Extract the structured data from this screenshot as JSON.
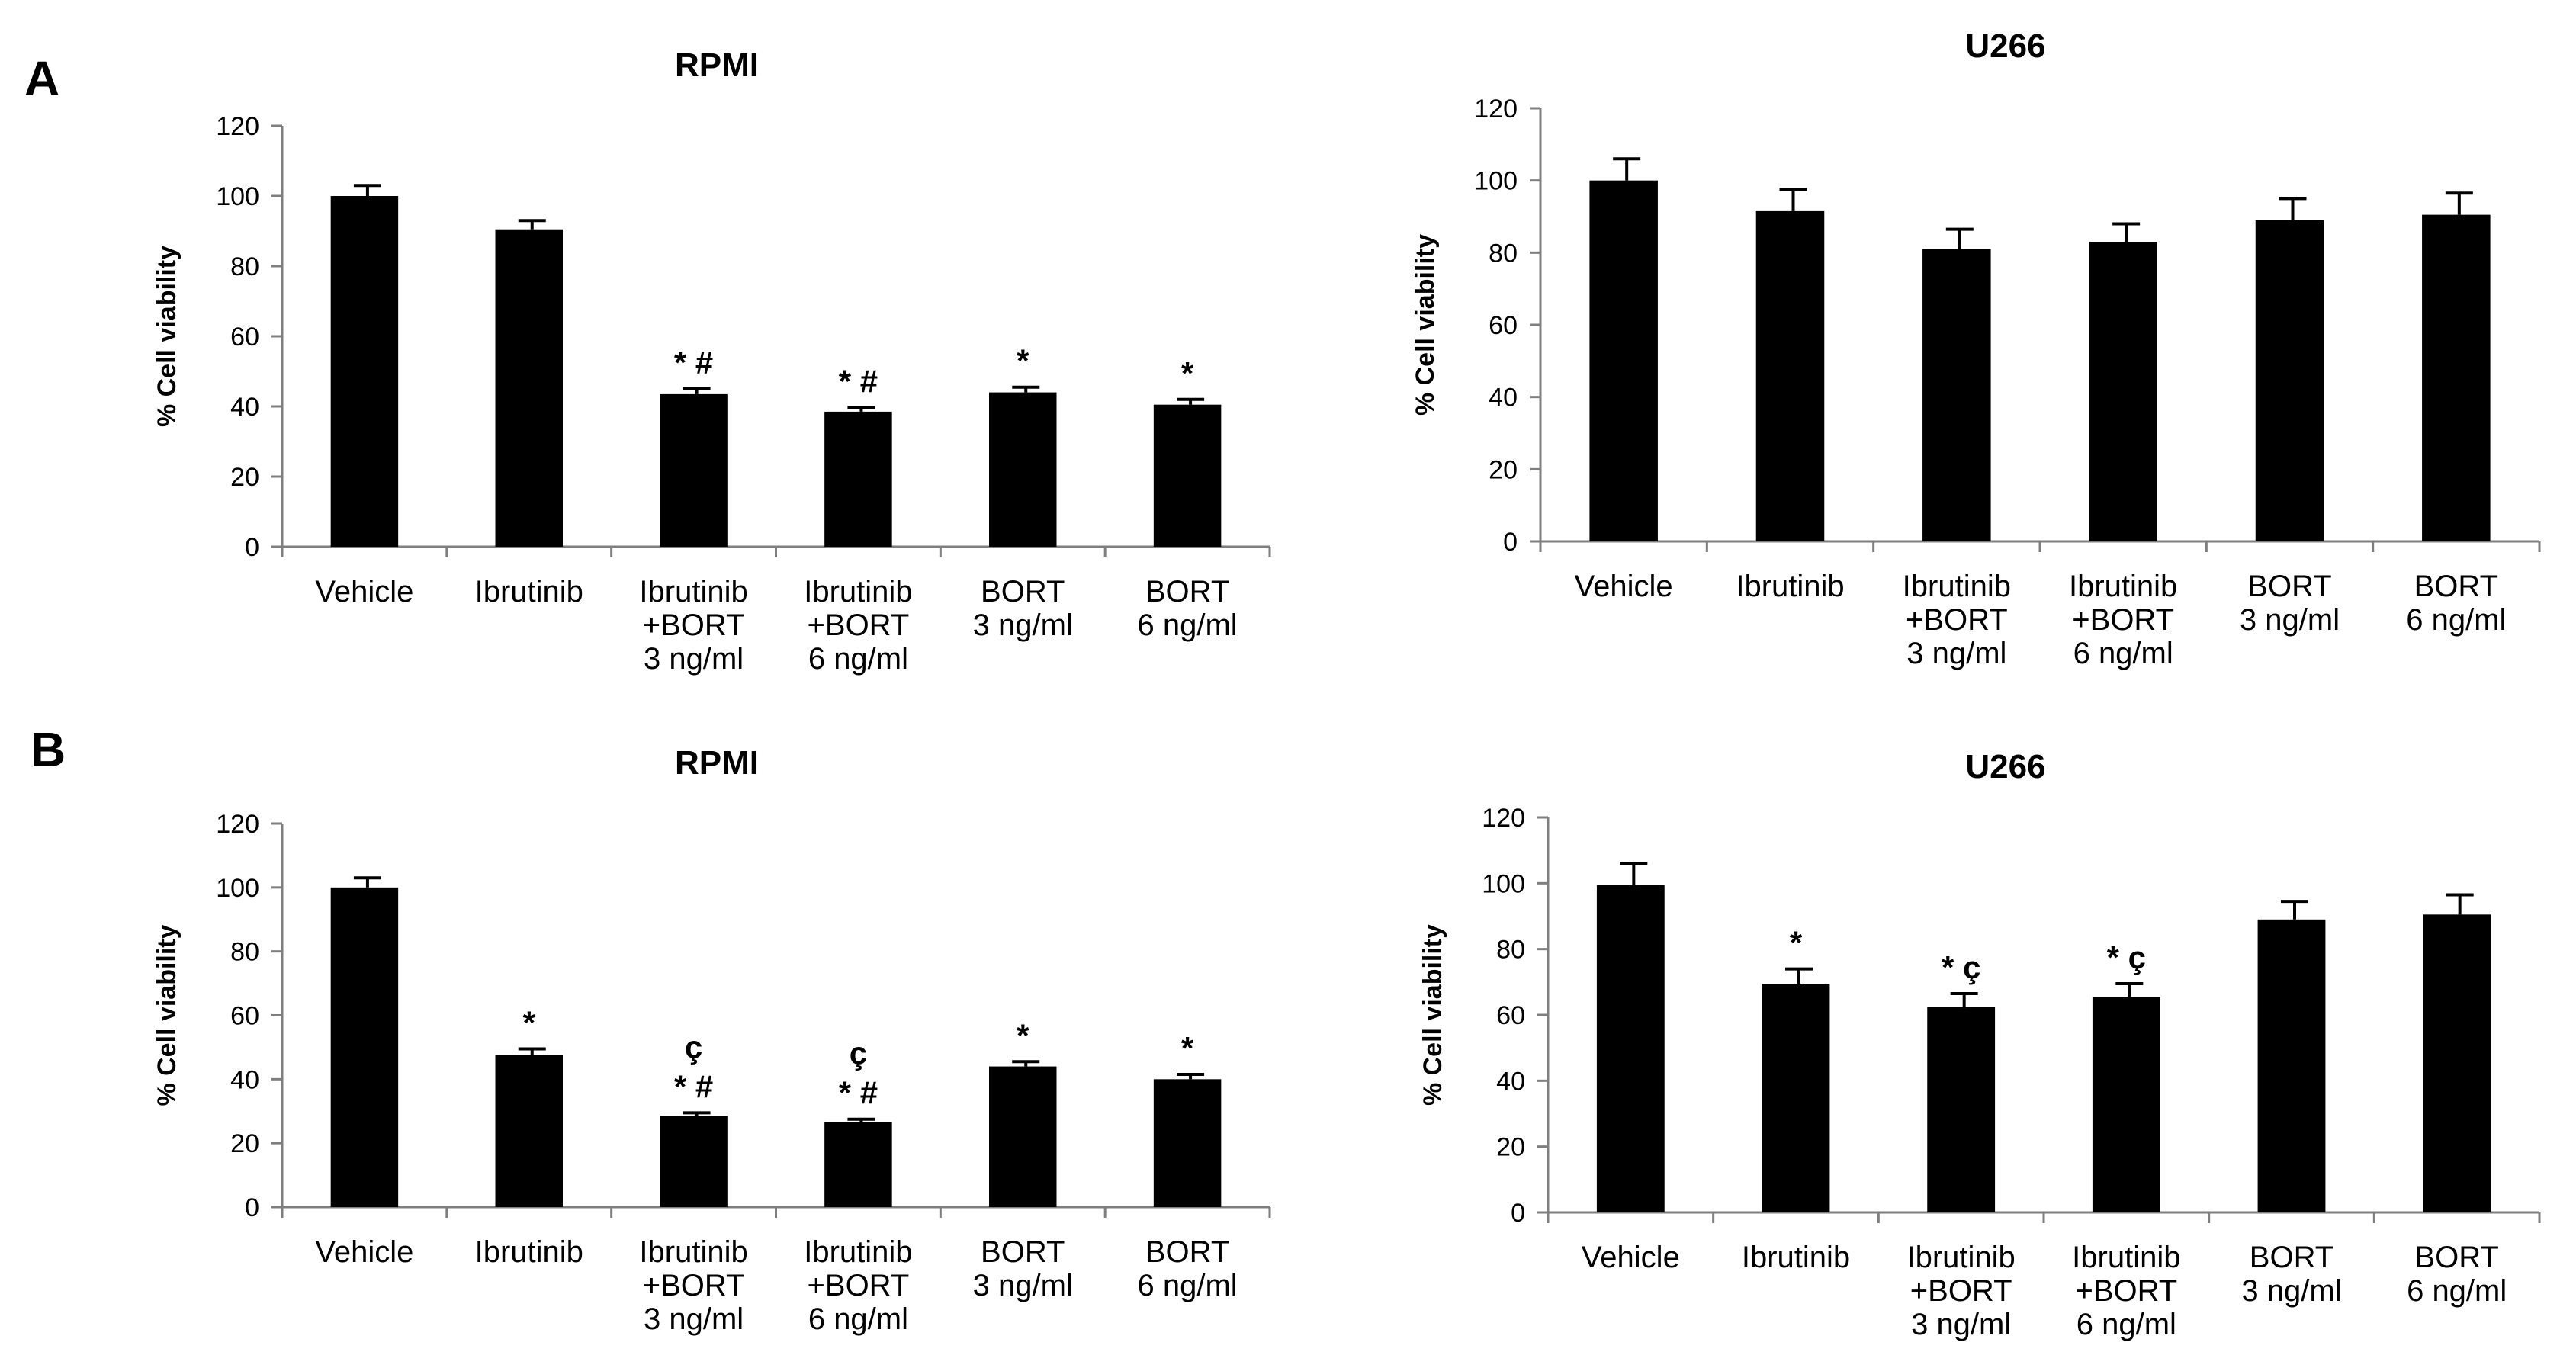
{
  "panels": [
    "A",
    "B"
  ],
  "chart_data": [
    {
      "type": "bar",
      "panel": "A",
      "title": "RPMI",
      "ylabel": "% Cell viability",
      "xlabel": "",
      "ylim": [
        0,
        120
      ],
      "yticks": [
        0,
        20,
        40,
        60,
        80,
        100,
        120
      ],
      "categories": [
        [
          "Vehicle"
        ],
        [
          "Ibrutinib"
        ],
        [
          "Ibrutinib",
          "+BORT",
          "3 ng/ml"
        ],
        [
          "Ibrutinib",
          "+BORT",
          "6 ng/ml"
        ],
        [
          "BORT",
          "3 ng/ml"
        ],
        [
          "BORT",
          "6 ng/ml"
        ]
      ],
      "values": [
        100,
        90.5,
        43.5,
        38.5,
        44,
        40.5
      ],
      "errors": [
        3,
        2.5,
        1.5,
        1.2,
        1.5,
        1.5
      ],
      "annotations": [
        [],
        [],
        [
          "* #"
        ],
        [
          "* #"
        ],
        [
          "*"
        ],
        [
          "*"
        ]
      ]
    },
    {
      "type": "bar",
      "panel": "A",
      "title": "U266",
      "ylabel": "% Cell viability",
      "xlabel": "",
      "ylim": [
        0,
        120
      ],
      "yticks": [
        0,
        20,
        40,
        60,
        80,
        100,
        120
      ],
      "categories": [
        [
          "Vehicle"
        ],
        [
          "Ibrutinib"
        ],
        [
          "Ibrutinib",
          "+BORT",
          "3 ng/ml"
        ],
        [
          "Ibrutinib",
          "+BORT",
          "6 ng/ml"
        ],
        [
          "BORT",
          "3 ng/ml"
        ],
        [
          "BORT",
          "6 ng/ml"
        ]
      ],
      "values": [
        100,
        91.5,
        81,
        83,
        89,
        90.5
      ],
      "errors": [
        6,
        6,
        5.5,
        5,
        6,
        6
      ],
      "annotations": [
        [],
        [],
        [],
        [],
        [],
        []
      ]
    },
    {
      "type": "bar",
      "panel": "B",
      "title": "RPMI",
      "ylabel": "% Cell viability",
      "xlabel": "",
      "ylim": [
        0,
        120
      ],
      "yticks": [
        0,
        20,
        40,
        60,
        80,
        100,
        120
      ],
      "categories": [
        [
          "Vehicle"
        ],
        [
          "Ibrutinib"
        ],
        [
          "Ibrutinib",
          "+BORT",
          "3 ng/ml"
        ],
        [
          "Ibrutinib",
          "+BORT",
          "6 ng/ml"
        ],
        [
          "BORT",
          "3 ng/ml"
        ],
        [
          "BORT",
          "6 ng/ml"
        ]
      ],
      "values": [
        100,
        47.5,
        28.5,
        26.5,
        44,
        40
      ],
      "errors": [
        3,
        2,
        1,
        1,
        1.5,
        1.5
      ],
      "annotations": [
        [],
        [
          "*"
        ],
        [
          "* #",
          "ç"
        ],
        [
          "* #",
          "ç"
        ],
        [
          "*"
        ],
        [
          "*"
        ]
      ]
    },
    {
      "type": "bar",
      "panel": "B",
      "title": "U266",
      "ylabel": "% Cell viability",
      "xlabel": "",
      "ylim": [
        0,
        120
      ],
      "yticks": [
        0,
        20,
        40,
        60,
        80,
        100,
        120
      ],
      "categories": [
        [
          "Vehicle"
        ],
        [
          "Ibrutinib"
        ],
        [
          "Ibrutinib",
          "+BORT",
          "3 ng/ml"
        ],
        [
          "Ibrutinib",
          "+BORT",
          "6 ng/ml"
        ],
        [
          "BORT",
          "3 ng/ml"
        ],
        [
          "BORT",
          "6 ng/ml"
        ]
      ],
      "values": [
        99.5,
        69.5,
        62.5,
        65.5,
        89,
        90.5
      ],
      "errors": [
        6.5,
        4.5,
        4,
        4,
        5.5,
        6
      ],
      "annotations": [
        [],
        [
          "*"
        ],
        [
          "* ç"
        ],
        [
          "* ç"
        ],
        [],
        []
      ]
    }
  ]
}
